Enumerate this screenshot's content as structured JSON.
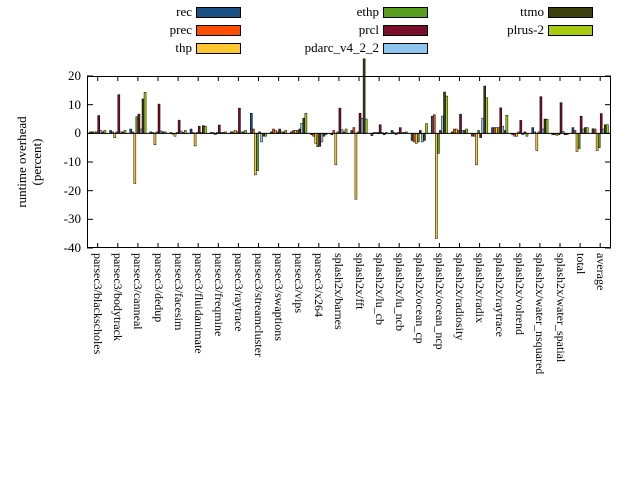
{
  "chart_data": {
    "type": "bar",
    "title": "",
    "ylabel_lines": [
      "runtime overhead",
      "(percent)"
    ],
    "ylim": [
      -40,
      20
    ],
    "yticks": [
      20,
      10,
      0,
      -10,
      -20,
      -30,
      -40
    ],
    "grid": false,
    "legend_position": "top-center-3-columns",
    "legend": {
      "columns": [
        [
          "rec",
          "prec",
          "thp"
        ],
        [
          "ethp",
          "prcl",
          "pdarc_v4_2_2"
        ],
        [
          "ttmo",
          "plrus-2"
        ]
      ]
    },
    "categories": [
      "parsec3/blackscholes",
      "parsec3/bodytrack",
      "parsec3/canneal",
      "parsec3/dedup",
      "parsec3/facesim",
      "parsec3/fluidanimate",
      "parsec3/freqmine",
      "parsec3/raytrace",
      "parsec3/streamcluster",
      "parsec3/swaptions",
      "parsec3/vips",
      "parsec3/x264",
      "splash2x/barnes",
      "splash2x/fft",
      "splash2x/lu_cb",
      "splash2x/lu_ncb",
      "splash2x/ocean_cp",
      "splash2x/ocean_ncp",
      "splash2x/radiosity",
      "splash2x/radix",
      "splash2x/raytrace",
      "splash2x/volrend",
      "splash2x/water_nsquared",
      "splash2x/water_spatial",
      "total",
      "average"
    ],
    "series": [
      {
        "name": "rec",
        "color": "#1a5084",
        "values": [
          0.5,
          1.0,
          1.5,
          0.5,
          0.3,
          1.5,
          0.3,
          0.5,
          7.0,
          0.5,
          0.5,
          -0.5,
          -0.5,
          1.0,
          -0.8,
          1.0,
          -2.5,
          6.0,
          0.5,
          -1.0,
          2.0,
          -0.5,
          2.0,
          -0.5,
          2.0,
          1.6
        ]
      },
      {
        "name": "prec",
        "color": "#fc4e00",
        "values": [
          0.5,
          0.5,
          0.5,
          0.3,
          -0.3,
          0.3,
          0.3,
          0.5,
          1.5,
          1.5,
          1.0,
          -1.0,
          1.0,
          2.0,
          0.3,
          0.3,
          -3.0,
          6.5,
          1.5,
          -1.0,
          2.0,
          -1.0,
          0.5,
          -0.5,
          1.0,
          1.5
        ]
      },
      {
        "name": "thp",
        "color": "#fdc530",
        "values": [
          0.5,
          -1.5,
          -17.5,
          -4.0,
          -1.0,
          -4.4,
          -0.5,
          1.0,
          -14.5,
          1.0,
          1.0,
          -3.5,
          -11.0,
          -23.0,
          0.3,
          -0.5,
          -3.5,
          -36.7,
          1.5,
          -11.0,
          2.0,
          -1.0,
          -6.0,
          -0.7,
          -6.3,
          -6.0
        ]
      },
      {
        "name": "ethp",
        "color": "#5a9e20",
        "values": [
          0.5,
          0.5,
          5.8,
          0.5,
          0.3,
          0.3,
          0.3,
          0.5,
          -13.0,
          0.5,
          1.0,
          -4.7,
          0.5,
          0.5,
          0.3,
          0.3,
          -3.0,
          -7.0,
          1.0,
          1.0,
          2.0,
          0.5,
          0.5,
          -0.5,
          -5.3,
          -5.0
        ]
      },
      {
        "name": "prcl",
        "color": "#7c0d2a",
        "values": [
          6.2,
          13.5,
          6.7,
          10.2,
          4.6,
          2.5,
          2.9,
          8.8,
          0.5,
          1.5,
          1.5,
          -4.5,
          8.8,
          7.0,
          3.0,
          2.0,
          1.0,
          1.0,
          6.7,
          -1.5,
          8.9,
          4.5,
          12.8,
          10.7,
          6.0,
          6.9
        ]
      },
      {
        "name": "pdarc_v4_2_2",
        "color": "#8cc6f0",
        "values": [
          1.0,
          0.5,
          1.5,
          0.8,
          0.8,
          0.3,
          0.3,
          0.5,
          -3.0,
          0.5,
          3.5,
          -3.0,
          1.3,
          5.3,
          0.3,
          0.3,
          -3.0,
          6.0,
          1.0,
          5.3,
          2.5,
          -0.5,
          1.5,
          0.7,
          1.5,
          1.5
        ]
      },
      {
        "name": "ttmo",
        "color": "#3b400c",
        "values": [
          0.5,
          0.5,
          12.0,
          0.5,
          0.3,
          2.7,
          0.3,
          0.5,
          -1.0,
          0.5,
          5.3,
          -1.0,
          0.5,
          26.0,
          -0.5,
          0.3,
          -2.5,
          14.4,
          1.0,
          16.5,
          1.0,
          0.5,
          5.0,
          -0.5,
          2.0,
          3.0
        ]
      },
      {
        "name": "plrus-2",
        "color": "#a7cb10",
        "values": [
          1.0,
          1.0,
          14.3,
          0.5,
          1.0,
          2.5,
          0.5,
          1.0,
          -1.0,
          1.0,
          7.0,
          -0.5,
          1.5,
          5.0,
          0.3,
          0.5,
          3.4,
          13.0,
          1.5,
          12.4,
          6.3,
          -1.0,
          4.9,
          -0.5,
          2.0,
          3.0
        ]
      }
    ]
  }
}
